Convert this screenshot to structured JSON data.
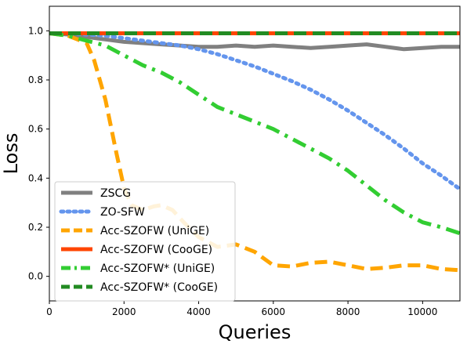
{
  "chart_data": {
    "type": "line",
    "title": "",
    "xlabel": "Queries",
    "ylabel": "Loss",
    "xlim": [
      0,
      11000
    ],
    "ylim": [
      -0.1,
      1.1
    ],
    "xticks": [
      0,
      2000,
      4000,
      6000,
      8000,
      10000
    ],
    "xtick_labels": [
      "0",
      "2000",
      "4000",
      "6000",
      "8000",
      "10000"
    ],
    "yticks": [
      0.0,
      0.2,
      0.4,
      0.6,
      0.8,
      1.0
    ],
    "ytick_labels": [
      "0.0",
      "0.2",
      "0.4",
      "0.6",
      "0.8",
      "1.0"
    ],
    "grid": false,
    "legend_position": "lower-left",
    "series": [
      {
        "name": "ZSCG",
        "color": "#808080",
        "style": "solid",
        "x": [
          0,
          500,
          1000,
          1500,
          2000,
          2500,
          3000,
          3500,
          4000,
          4500,
          5000,
          5500,
          6000,
          6500,
          7000,
          7500,
          8000,
          8500,
          9000,
          9500,
          10000,
          10500,
          11000
        ],
        "y": [
          0.99,
          0.985,
          0.975,
          0.965,
          0.955,
          0.95,
          0.945,
          0.94,
          0.935,
          0.935,
          0.94,
          0.935,
          0.94,
          0.935,
          0.93,
          0.935,
          0.94,
          0.945,
          0.935,
          0.925,
          0.93,
          0.935,
          0.935
        ]
      },
      {
        "name": "ZO-SFW",
        "color": "#6495ED",
        "style": "dotted",
        "x": [
          0,
          500,
          1000,
          1500,
          2000,
          2500,
          3000,
          3500,
          4000,
          4500,
          5000,
          5500,
          6000,
          6500,
          7000,
          7500,
          8000,
          8500,
          9000,
          9500,
          10000,
          10500,
          11000
        ],
        "y": [
          0.99,
          0.99,
          0.985,
          0.98,
          0.97,
          0.96,
          0.95,
          0.94,
          0.925,
          0.905,
          0.88,
          0.855,
          0.825,
          0.795,
          0.76,
          0.72,
          0.675,
          0.625,
          0.575,
          0.52,
          0.46,
          0.41,
          0.355
        ]
      },
      {
        "name": "Acc-SZOFW (UniGE)",
        "color": "#FFA500",
        "style": "dashed",
        "x": [
          0,
          500,
          1000,
          1200,
          1500,
          1800,
          2000,
          2200,
          2500,
          2800,
          3000,
          3300,
          3600,
          4000,
          4500,
          5000,
          5500,
          6000,
          6500,
          7000,
          7500,
          8000,
          8500,
          9000,
          9500,
          10000,
          10500,
          11000
        ],
        "y": [
          0.99,
          0.98,
          0.95,
          0.88,
          0.72,
          0.5,
          0.36,
          0.29,
          0.27,
          0.285,
          0.29,
          0.27,
          0.22,
          0.16,
          0.12,
          0.13,
          0.1,
          0.045,
          0.04,
          0.055,
          0.06,
          0.045,
          0.03,
          0.035,
          0.045,
          0.045,
          0.03,
          0.025
        ]
      },
      {
        "name": "Acc-SZOFW (CooGE)",
        "color": "#FF4500",
        "style": "solid",
        "x": [
          0,
          11000
        ],
        "y": [
          0.99,
          0.99
        ]
      },
      {
        "name": "Acc-SZOFW* (UniGE)",
        "color": "#32CD32",
        "style": "dashdot",
        "x": [
          0,
          500,
          1000,
          1500,
          2000,
          2500,
          3000,
          3500,
          4000,
          4500,
          5000,
          5500,
          6000,
          6500,
          7000,
          7500,
          8000,
          8500,
          9000,
          9500,
          10000,
          10500,
          11000
        ],
        "y": [
          0.99,
          0.98,
          0.96,
          0.94,
          0.9,
          0.86,
          0.83,
          0.79,
          0.74,
          0.69,
          0.66,
          0.63,
          0.6,
          0.56,
          0.52,
          0.48,
          0.43,
          0.37,
          0.31,
          0.26,
          0.22,
          0.2,
          0.175
        ]
      },
      {
        "name": "Acc-SZOFW* (CooGE)",
        "color": "#228B22",
        "style": "dashed",
        "x": [
          0,
          11000
        ],
        "y": [
          0.99,
          0.99
        ]
      }
    ]
  }
}
